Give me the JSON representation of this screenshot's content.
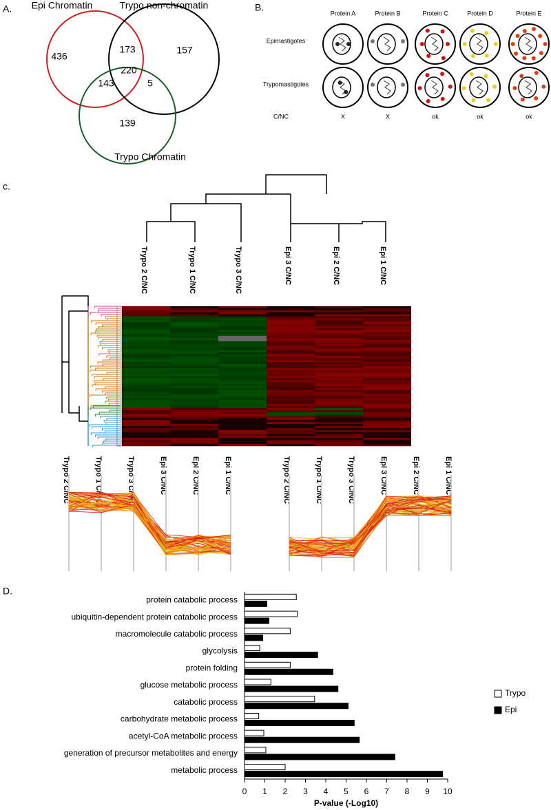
{
  "panel_a": {
    "label": "A.",
    "sets": [
      "Epi Chromatin",
      "Trypo non-chromatin",
      "Trypo Chromatin"
    ],
    "counts": [
      436,
      173,
      157,
      220,
      143,
      5,
      139
    ]
  },
  "panel_b": {
    "label": "B.",
    "proteins": [
      "Protein A",
      "Protein B",
      "Protein C",
      "Protein D",
      "Protein E"
    ],
    "stages": [
      "Epimastigotes",
      "Trypomastigotes"
    ],
    "ratio_label": "C/NC",
    "ratio": [
      "X",
      "X",
      "ok",
      "ok",
      "ok"
    ]
  },
  "panel_c": {
    "label": "c.",
    "columns": [
      "Trypo 2 C/NC",
      "Trypo 1 C/NC",
      "Trypo 3 C/NC",
      "Epi 3 C/NC",
      "Epi 2 C/NC",
      "Epi 1 C/NC"
    ]
  },
  "panel_d_label": "D.",
  "chart_data": {
    "type": "hbar",
    "xlabel": "P-value (-Log10)",
    "categories": [
      "protein catabolic process",
      "ubiquitin-dependent protein catabolic process",
      "macromolecule catabolic process",
      "glycolysis",
      "protein folding",
      "glucose metabolic process",
      "catabolic process",
      "carbohydrate metabolic process",
      "acetyl-CoA metabolic process",
      "generation of precursor metabolites and energy",
      "metabolic process"
    ],
    "series": [
      {
        "name": "Trypo",
        "color": "#ffffff",
        "values": [
          2.55,
          2.6,
          2.25,
          0.75,
          2.25,
          1.3,
          3.45,
          0.7,
          0.95,
          1.05,
          2.0
        ]
      },
      {
        "name": "Epi",
        "color": "#000000",
        "values": [
          1.1,
          1.2,
          0.9,
          3.6,
          4.35,
          4.6,
          5.1,
          5.4,
          5.65,
          7.4,
          9.75
        ]
      }
    ],
    "xlim": [
      0,
      10
    ],
    "xticks": [
      0,
      1,
      2,
      3,
      4,
      5,
      6,
      7,
      8,
      9,
      10
    ],
    "legend": "right"
  }
}
